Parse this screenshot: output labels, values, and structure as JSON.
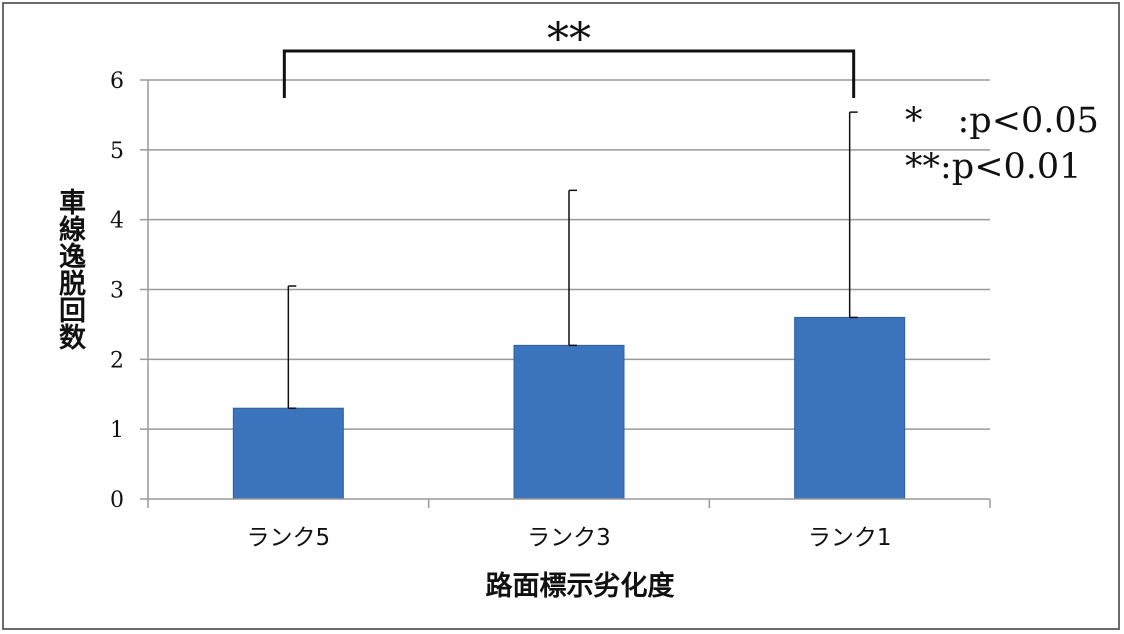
{
  "chart_data": {
    "type": "bar",
    "categories": [
      "ランク5",
      "ランク3",
      "ランク1"
    ],
    "values": [
      1.3,
      2.2,
      2.6
    ],
    "error_upper": [
      3.05,
      4.42,
      5.54
    ],
    "ylabel": "車線逸脱回数",
    "xlabel": "路面標示劣化度",
    "ylim": [
      0,
      6
    ],
    "yticks": [
      0,
      1,
      2,
      3,
      4,
      5,
      6
    ],
    "grid": true,
    "bar_color": "#3b74bd",
    "bar_border_color": "#2e5f9f",
    "significance": {
      "from": "ランク5",
      "to": "ランク1",
      "label": "**"
    },
    "legend_lines": [
      "*　:p<0.05",
      "**:p<0.01"
    ],
    "legend_placement": "top-right"
  }
}
